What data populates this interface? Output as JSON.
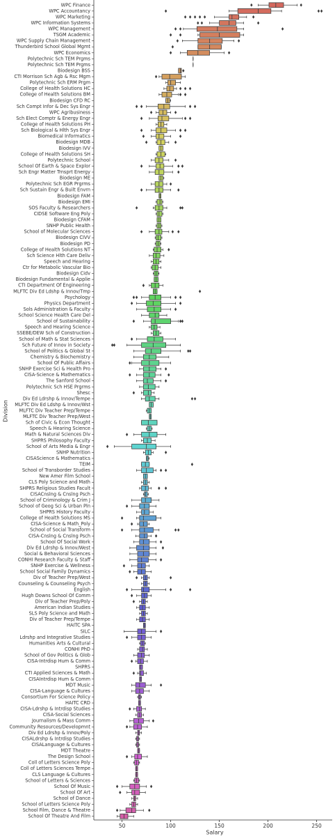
{
  "chart_data": {
    "type": "boxplot",
    "orientation": "horizontal",
    "x_label": "Salary",
    "y_label": "Division",
    "xlim": [
      21,
      266
    ],
    "xticks": [
      50,
      100,
      150,
      200,
      250
    ],
    "palette": "husl",
    "outlier_color": "#3a3a3a",
    "categories": [
      "WPC Finance",
      "WPC Accountancy",
      "WPC Marketing",
      "WPC Information Systems",
      "WPC Management",
      "TSGM Academic",
      "WPC Supply Chain Management",
      "Thunderbird School Global Mgmt",
      "WPC Economics",
      "Polytechnic Sch TEM Prgms",
      "Polytechnic Sch TEM Prgms",
      "Biodesign BSS",
      "CTI Morrison Sch Agb & Rsc Mgm",
      "Polytechnic Sch ERM Prgm",
      "College of Health Solutions HC",
      "College of Health Solutions BM",
      "Biodesign CFD RC",
      "Sch Compt Infor & Dec Sys Engr",
      "WPC Agribusiness",
      "Sch Elect Comptr & Energy Engr",
      "College of Health Solutions PH",
      "Sch Biological & Hlth Sys Engr",
      "Biomedical Informatics",
      "Biodesign MDB",
      "Biodesign IVV",
      "College of Health Solutions SH",
      "Polytechnic School",
      "School Of Earth & Space Explor",
      "Sch Engr Matter Trnsprt Energy",
      "Biodesign ME",
      "Polytechnic Sch EGR Prgrms",
      "Sch Sustain Engr & Built Envrn",
      "Biodesign FAM",
      "Biodesign EMI",
      "SOS Faculty & Researchers",
      "CIDSE Software Eng Poly",
      "Biodesign CFAM",
      "SNHP Public Health",
      "School of Molecular Sciences",
      "Biodesign CIVV",
      "Biodesign PD",
      "College of Health Solutions NT",
      "Sch Science Hlth Care Deliv",
      "Speech and Hearing",
      "Ctr for Metabolic Vascular Bio",
      "Biodesign Cidv",
      "Biodesign Fundamental & Applie",
      "CTI Department Of Engineering",
      "MLFTC Div Ed Ldshp & Innov/Tmp",
      "Psychology",
      "Physics Department",
      "Sols Administration & Faculty",
      "School Science Health Care Del",
      "School of Sustainability",
      "Speech and Hearing Science",
      "SSEBE/DEW Sch of Construction",
      "School of Math & Stat Sciences",
      "Sch Future of Innov in Society",
      "School of Politics & Global St",
      "Chemistry & Biochemistry",
      "School Of Public Affairs",
      "SNHP Exercise Sci & Health Pro",
      "CISA-Science & Mathematics",
      "The Sanford School",
      "Polytechnic Sch HSE Prgrms",
      "Shesc",
      "Div Ed Ldrshp & Innov/Tempe",
      "MLFTC Div Ed Ldshp & Innov/Wst",
      "MLFTC Div Teacher Prep/Tempe",
      "MLFTC Div Teacher Prep/West",
      "Sch of Civic & Econ Thought",
      "Speech & Hearing Science",
      "Math & Natural Sciences Div",
      "SHPRS Philosophy Faculty",
      "School of Arts Media & Engr",
      "SNHP Nutrition",
      "CISAScience & Mathematics",
      "TEIM",
      "School of Transborder Studies",
      "New Amer Film School",
      "CLS Poly Science and Math",
      "SHPRS Religious Studies Facult",
      "CISACnslng & Cnslng Psch",
      "School of Criminology & Crim J",
      "School of Geog Sci & Urban Pln",
      "SHPRS History Faculty",
      "College of Health Solutions MS",
      "CISA-Science & Math_Poly",
      "School of Social Transform",
      "CISA-Cnslng & Cnslng Psch",
      "School Of Social Work",
      "Div Ed Ldrshp & Innov/West",
      "Social & Behavioral Sciences",
      "CONHI Research Faculty & Staff",
      "SNHP Exercise & Wellness",
      "School Social Family Dynamics",
      "Div of Teacher Prep/West",
      "Counseling & Counseling Psych",
      "English",
      "Hugh Downs School Of Comm",
      "Div of Teacher Prep/Poly",
      "American Indian Studies",
      "SLS Poly Science and Math",
      "Div of Teacher Prep/Tempe",
      "HAITC SPA",
      "SILC",
      "Ldrshp and Integrative Studies",
      "Humanities Arts & Cultural",
      "CONHI PhD",
      "School of Gov Politics & Glob",
      "CISA-Intrdisp Hum & Comm",
      "SHPRS",
      "CTI Applied Sciences & Math",
      "CISAIntrdisp Hum & Comm",
      "MDT Music",
      "CISA-Language & Cultures",
      "Consortium For Science Policy",
      "HAITC CRD",
      "CISA-Ldrshp & Intrdisp Studies",
      "CISA-Social Sciences",
      "Journalism & Mass Comm",
      "Community Resources/Developmnt",
      "Div Ed Ldrshp & Innov/Poly",
      "CISALdrshp & Intrdisp Studies",
      "CISALanguage & Cultures",
      "MDT Theatre",
      "The Design School",
      "Coll of Letters Science Poly",
      "Coll of Letters Sciences Tempe",
      "CLS Language & Cultures",
      "School of Letters & Sciences",
      "School Of Music",
      "School Of Art",
      "School of Dance",
      "School of Letters Science Poly",
      "School Film, Dance & Theatre",
      "School Of Theatre And Film"
    ],
    "boxes": [
      [
        190,
        201,
        208,
        216,
        230
      ],
      [
        160,
        169,
        190,
        203,
        214
      ],
      [
        145,
        160,
        163,
        170,
        178
      ],
      [
        140,
        150,
        160,
        167,
        175
      ],
      [
        113,
        127,
        148,
        168,
        175
      ],
      [
        128,
        130,
        150,
        171,
        175
      ],
      [
        112,
        128,
        140,
        153,
        165
      ],
      [
        128,
        128,
        140,
        152,
        152
      ],
      [
        110,
        117,
        128,
        140,
        155
      ],
      [
        123,
        123,
        123,
        123,
        123
      ],
      [
        123,
        123,
        123,
        123,
        123
      ],
      [
        108,
        108,
        110,
        111,
        111
      ],
      [
        88,
        91,
        99,
        111,
        115
      ],
      [
        95,
        97,
        100,
        105,
        110
      ],
      [
        93,
        96,
        99,
        103,
        106
      ],
      [
        88,
        91,
        96,
        101,
        108
      ],
      [
        95,
        95,
        97,
        99,
        100
      ],
      [
        75,
        87,
        93,
        99,
        115
      ],
      [
        85,
        88,
        92,
        96,
        100
      ],
      [
        78,
        87,
        91,
        98,
        112
      ],
      [
        85,
        87,
        90,
        93,
        96
      ],
      [
        80,
        85,
        90,
        96,
        105
      ],
      [
        80,
        85,
        88,
        93,
        100
      ],
      [
        85,
        86,
        90,
        94,
        98
      ],
      [
        88,
        88,
        90,
        92,
        92
      ],
      [
        85,
        86,
        90,
        94,
        95
      ],
      [
        80,
        84,
        88,
        92,
        98
      ],
      [
        78,
        85,
        89,
        93,
        102
      ],
      [
        78,
        84,
        88,
        93,
        102
      ],
      [
        88,
        88,
        90,
        92,
        93
      ],
      [
        80,
        84,
        88,
        92,
        96
      ],
      [
        75,
        84,
        88,
        92,
        100
      ],
      [
        88,
        88,
        89,
        90,
        90
      ],
      [
        85,
        86,
        89,
        91,
        92
      ],
      [
        82,
        84,
        88,
        92,
        96
      ],
      [
        85,
        86,
        88,
        91,
        92
      ],
      [
        86,
        86,
        88,
        90,
        90
      ],
      [
        85,
        86,
        88,
        90,
        91
      ],
      [
        78,
        84,
        88,
        91,
        98
      ],
      [
        84,
        85,
        87,
        90,
        91
      ],
      [
        84,
        85,
        87,
        89,
        90
      ],
      [
        82,
        83,
        86,
        90,
        92
      ],
      [
        78,
        82,
        85,
        89,
        93
      ],
      [
        80,
        82,
        85,
        88,
        90
      ],
      [
        80,
        81,
        84,
        87,
        90
      ],
      [
        82,
        83,
        85,
        87,
        88
      ],
      [
        83,
        83,
        85,
        87,
        87
      ],
      [
        78,
        80,
        84,
        88,
        92
      ],
      [
        82,
        82,
        84,
        86,
        86
      ],
      [
        70,
        78,
        84,
        90,
        100
      ],
      [
        65,
        75,
        82,
        90,
        105
      ],
      [
        65,
        76,
        83,
        90,
        100
      ],
      [
        70,
        78,
        84,
        88,
        96
      ],
      [
        72,
        80,
        84,
        100,
        108
      ],
      [
        78,
        80,
        83,
        86,
        89
      ],
      [
        80,
        82,
        85,
        88,
        90
      ],
      [
        65,
        76,
        83,
        92,
        105
      ],
      [
        55,
        70,
        82,
        95,
        110
      ],
      [
        62,
        74,
        80,
        90,
        110
      ],
      [
        62,
        72,
        78,
        85,
        98
      ],
      [
        60,
        70,
        78,
        88,
        100
      ],
      [
        68,
        72,
        78,
        85,
        90
      ],
      [
        65,
        72,
        78,
        84,
        90
      ],
      [
        65,
        72,
        76,
        82,
        90
      ],
      [
        68,
        72,
        77,
        84,
        88
      ],
      [
        70,
        72,
        77,
        80,
        83
      ],
      [
        70,
        74,
        78,
        84,
        88
      ],
      [
        78,
        78,
        80,
        82,
        82
      ],
      [
        75,
        76,
        78,
        80,
        80
      ],
      [
        78,
        78,
        79,
        80,
        80
      ],
      [
        70,
        70,
        77,
        86,
        86
      ],
      [
        75,
        76,
        78,
        80,
        81
      ],
      [
        62,
        70,
        78,
        86,
        95
      ],
      [
        70,
        72,
        76,
        80,
        84
      ],
      [
        42,
        60,
        75,
        85,
        100
      ],
      [
        72,
        74,
        77,
        80,
        82
      ],
      [
        75,
        75,
        76,
        77,
        78
      ],
      [
        70,
        70,
        74,
        78,
        78
      ],
      [
        65,
        70,
        75,
        82,
        85
      ],
      [
        72,
        72,
        74,
        76,
        76
      ],
      [
        70,
        72,
        74,
        76,
        78
      ],
      [
        68,
        70,
        74,
        77,
        80
      ],
      [
        72,
        73,
        74,
        76,
        77
      ],
      [
        60,
        70,
        74,
        80,
        88
      ],
      [
        60,
        68,
        73,
        78,
        85
      ],
      [
        65,
        70,
        73,
        78,
        82
      ],
      [
        65,
        68,
        72,
        85,
        90
      ],
      [
        66,
        68,
        72,
        76,
        78
      ],
      [
        60,
        68,
        73,
        82,
        88
      ],
      [
        64,
        68,
        73,
        76,
        80
      ],
      [
        62,
        68,
        72,
        78,
        85
      ],
      [
        58,
        65,
        72,
        78,
        85
      ],
      [
        58,
        66,
        72,
        78,
        85
      ],
      [
        58,
        66,
        70,
        77,
        85
      ],
      [
        60,
        66,
        70,
        74,
        78
      ],
      [
        62,
        66,
        70,
        74,
        80
      ],
      [
        70,
        72,
        74,
        76,
        78
      ],
      [
        70,
        72,
        74,
        76,
        78
      ],
      [
        60,
        70,
        72,
        78,
        95
      ],
      [
        65,
        70,
        73,
        76,
        80
      ],
      [
        68,
        70,
        72,
        74,
        76
      ],
      [
        65,
        68,
        71,
        74,
        78
      ],
      [
        68,
        70,
        72,
        74,
        76
      ],
      [
        65,
        68,
        71,
        74,
        78
      ],
      [
        72,
        72,
        73,
        74,
        74
      ],
      [
        52,
        66,
        70,
        74,
        85
      ],
      [
        60,
        66,
        70,
        74,
        80
      ],
      [
        68,
        69,
        71,
        73,
        74
      ],
      [
        66,
        68,
        71,
        73,
        76
      ],
      [
        62,
        66,
        70,
        73,
        78
      ],
      [
        64,
        66,
        69,
        72,
        76
      ],
      [
        68,
        68,
        69,
        71,
        71
      ],
      [
        66,
        68,
        69,
        72,
        75
      ],
      [
        68,
        68,
        69,
        70,
        70
      ],
      [
        60,
        64,
        68,
        74,
        80
      ],
      [
        60,
        64,
        68,
        72,
        78
      ],
      [
        66,
        67,
        68,
        69,
        70
      ],
      [
        67,
        67,
        68,
        69,
        69
      ],
      [
        62,
        65,
        68,
        70,
        74
      ],
      [
        64,
        66,
        68,
        70,
        72
      ],
      [
        58,
        62,
        67,
        72,
        78
      ],
      [
        58,
        62,
        66,
        70,
        76
      ],
      [
        64,
        66,
        67,
        68,
        70
      ],
      [
        64,
        65,
        66,
        67,
        68
      ],
      [
        64,
        65,
        66,
        67,
        68
      ],
      [
        66,
        66,
        67,
        68,
        68
      ],
      [
        60,
        63,
        66,
        70,
        76
      ],
      [
        62,
        63,
        65,
        67,
        68
      ],
      [
        64,
        64,
        65,
        66,
        66
      ],
      [
        64,
        64,
        65,
        66,
        66
      ],
      [
        62,
        63,
        65,
        67,
        68
      ],
      [
        50,
        58,
        63,
        68,
        75
      ],
      [
        55,
        60,
        63,
        68,
        74
      ],
      [
        60,
        62,
        63,
        64,
        66
      ],
      [
        58,
        60,
        62,
        64,
        66
      ],
      [
        48,
        54,
        60,
        64,
        72
      ],
      [
        45,
        48,
        52,
        56,
        62
      ]
    ],
    "outliers": [
      [
        183,
        234
      ],
      [
        95,
        252,
        255
      ],
      [
        115,
        120,
        125,
        130,
        135,
        185
      ],
      [
        128,
        132,
        190
      ],
      [
        105,
        110,
        215
      ],
      [
        100,
        110
      ],
      [
        107,
        170
      ],
      [
        102
      ],
      [
        100,
        160
      ],
      [],
      [],
      [
        113
      ],
      [
        85
      ],
      [],
      [
        110,
        115,
        120
      ],
      [
        110,
        115
      ],
      [],
      [
        65,
        70,
        120,
        125
      ],
      [
        80,
        105
      ],
      [
        70,
        115,
        120
      ],
      [],
      [
        70,
        110,
        115
      ],
      [
        72,
        110
      ],
      [
        75,
        105
      ],
      [],
      [],
      [
        105
      ],
      [
        70,
        108,
        112
      ],
      [
        108
      ],
      [],
      [
        100
      ],
      [
        70,
        108
      ],
      [],
      [],
      [
        65,
        110,
        112
      ],
      [],
      [],
      [],
      [
        70,
        102,
        108
      ],
      [],
      [],
      [
        98
      ],
      [],
      [],
      [],
      [],
      [],
      [
        72
      ],
      [
        130
      ],
      [
        62,
        65,
        105,
        110
      ],
      [
        60,
        110
      ],
      [
        105
      ],
      [],
      [
        62,
        110,
        112
      ],
      [],
      [],
      [
        60
      ],
      [
        40,
        42
      ],
      [
        118,
        120
      ],
      [],
      [
        58
      ],
      [
        95
      ],
      [
        58,
        98
      ],
      [
        95
      ],
      [],
      [
        62
      ],
      [
        122,
        125
      ],
      [],
      [],
      [],
      [],
      [],
      [
        55
      ],
      [],
      [
        35
      ],
      [
        95
      ],
      [],
      [
        122
      ],
      [
        90,
        95
      ],
      [],
      [],
      [
        88,
        95
      ],
      [],
      [],
      [
        55
      ],
      [],
      [
        50
      ],
      [
        60
      ],
      [
        50,
        105,
        108
      ],
      [
        85
      ],
      [
        90
      ],
      [
        92
      ],
      [],
      [
        90
      ],
      [
        52
      ],
      [
        58
      ],
      [
        65,
        100
      ],
      [],
      [
        55,
        100,
        120
      ],
      [
        60
      ],
      [
        62
      ],
      [],
      [],
      [],
      [],
      [
        90
      ],
      [
        55
      ],
      [],
      [],
      [],
      [
        60
      ],
      [],
      [
        62
      ],
      [],
      [
        90
      ],
      [],
      [],
      [],
      [
        58
      ],
      [],
      [
        82
      ],
      [
        55
      ],
      [],
      [],
      [],
      [],
      [
        55
      ],
      [],
      [],
      [],
      [],
      [
        45,
        80
      ],
      [
        48
      ],
      [],
      [],
      [
        45,
        78
      ],
      []
    ]
  }
}
